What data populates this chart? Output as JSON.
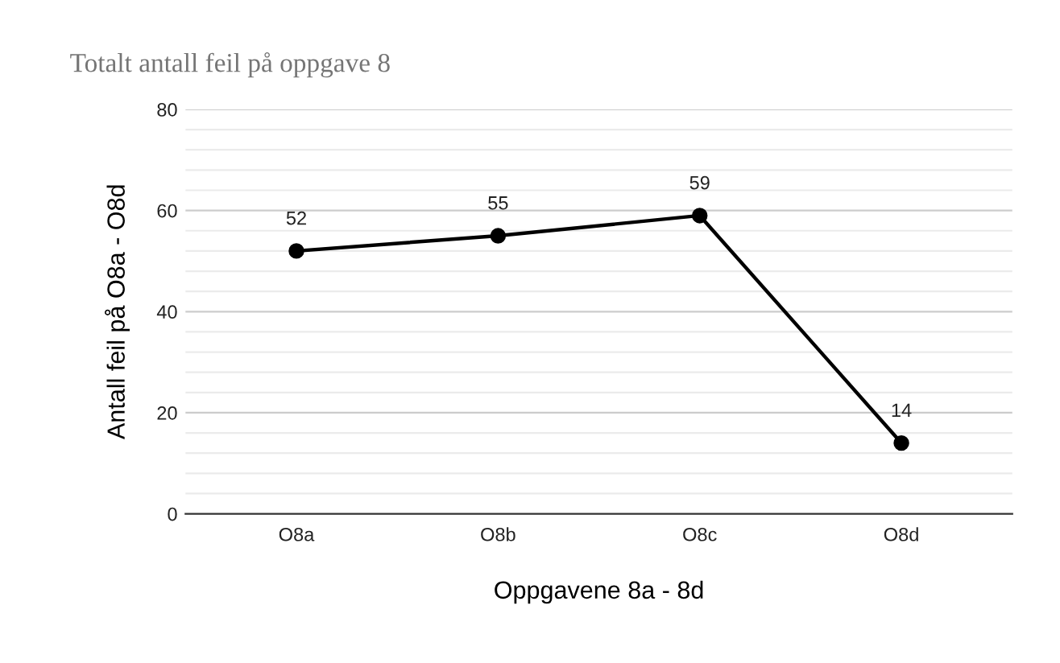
{
  "chart_data": {
    "type": "line",
    "title": "Totalt antall feil på oppgave 8",
    "xlabel": "Oppgavene 8a - 8d",
    "ylabel": "Antall feil på O8a - O8d",
    "categories": [
      "O8a",
      "O8b",
      "O8c",
      "O8d"
    ],
    "series": [
      {
        "color": "#000000",
        "values": [
          52,
          55,
          59,
          14
        ]
      }
    ],
    "ylim": [
      0,
      80
    ],
    "yticks": [
      0,
      {
        "value": 4,
        "label": null
      },
      {
        "value": 8,
        "label": null
      },
      {
        "value": 12,
        "label": null
      },
      {
        "value": 16,
        "label": null
      },
      20,
      {
        "value": 24,
        "label": null
      },
      {
        "value": 28,
        "label": null
      },
      {
        "value": 32,
        "label": null
      },
      {
        "value": 36,
        "label": null
      },
      40,
      {
        "value": 44,
        "label": null
      },
      {
        "value": 48,
        "label": null
      },
      {
        "value": 52,
        "label": null
      },
      {
        "value": 56,
        "label": null
      },
      60,
      {
        "value": 64,
        "label": null
      },
      {
        "value": 68,
        "label": null
      },
      {
        "value": 72,
        "label": null
      },
      {
        "value": 76,
        "label": null
      },
      80
    ],
    "grid": "y",
    "marker": "circle",
    "line_style": "solid",
    "data_labels": true,
    "legend": false
  }
}
